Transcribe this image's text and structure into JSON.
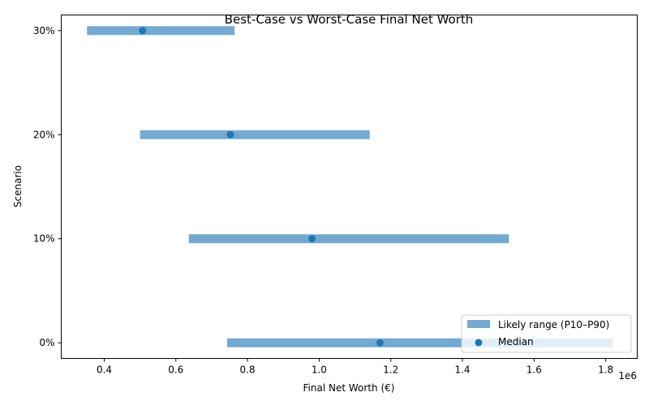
{
  "chart_data": {
    "type": "range",
    "title": "Best-Case vs Worst-Case Final Net Worth",
    "xlabel": "Final Net Worth (€)",
    "ylabel": "Scenario",
    "x_offset_label": "1e6",
    "xlim": [
      280000,
      1888000
    ],
    "x_ticks": [
      400000,
      600000,
      800000,
      1000000,
      1200000,
      1400000,
      1600000,
      1800000
    ],
    "x_tick_labels": [
      "0.4",
      "0.6",
      "0.8",
      "1.0",
      "1.2",
      "1.4",
      "1.6",
      "1.8"
    ],
    "categories": [
      "0%",
      "10%",
      "20%",
      "30%"
    ],
    "series": [
      {
        "name": "Likely range (P10–P90)",
        "color": "#74aad2",
        "low": [
          743000,
          636000,
          500000,
          352000
        ],
        "high": [
          1820000,
          1530000,
          1141000,
          764000
        ]
      },
      {
        "name": "Median",
        "color": "#1f77b4",
        "values": [
          1170000,
          980000,
          752000,
          507000
        ]
      }
    ],
    "legend": "lower-right",
    "grid": false
  }
}
